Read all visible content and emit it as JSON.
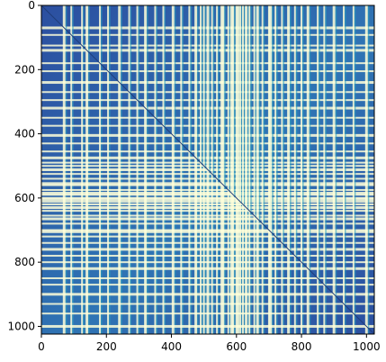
{
  "chart_data": {
    "type": "heatmap",
    "title": "",
    "xlabel": "",
    "ylabel": "",
    "xlim": [
      0,
      1024
    ],
    "ylim": [
      1024,
      0
    ],
    "x_ticks": [
      0,
      200,
      400,
      600,
      800,
      1000
    ],
    "y_ticks": [
      0,
      200,
      400,
      600,
      800,
      1000
    ],
    "x_tick_labels": [
      "0",
      "200",
      "400",
      "600",
      "800",
      "1000"
    ],
    "y_tick_labels": [
      "0",
      "200",
      "400",
      "600",
      "800",
      "1000"
    ],
    "matrix_size": 1024,
    "colormap": "YlGnBu",
    "colors": {
      "low": "#2c4fa0",
      "mid": "#2aa0c0",
      "high": "#ffffd9"
    },
    "bright_line_indices": [
      70,
      92,
      125,
      140,
      180,
      205,
      240,
      270,
      295,
      320,
      350,
      375,
      405,
      430,
      455,
      475,
      490,
      500,
      512,
      525,
      540,
      555,
      560,
      575,
      585,
      590,
      600,
      605,
      612,
      620,
      630,
      640,
      655,
      665,
      680,
      700,
      705,
      720,
      740,
      760,
      780,
      800,
      820,
      850,
      870,
      900,
      930,
      960,
      1000
    ],
    "diagonal": true
  }
}
